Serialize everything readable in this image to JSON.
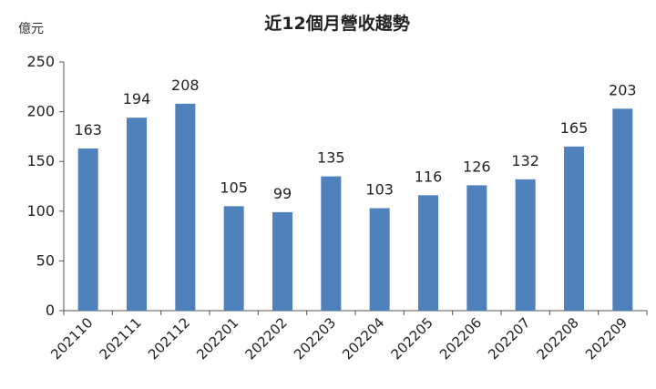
{
  "chart_data": {
    "type": "bar",
    "title": "近12個月營收趨勢",
    "ylabel": "億元",
    "xlabel": "",
    "categories": [
      "202110",
      "202111",
      "202112",
      "202201",
      "202202",
      "202203",
      "202204",
      "202205",
      "202206",
      "202207",
      "202208",
      "202209"
    ],
    "values": [
      163,
      194,
      208,
      105,
      99,
      135,
      103,
      116,
      126,
      132,
      165,
      203
    ],
    "ylim": [
      0,
      250
    ],
    "yticks": [
      0,
      50,
      100,
      150,
      200,
      250
    ],
    "grid": false,
    "legend": "none",
    "bar_color": "#4F81BD"
  }
}
